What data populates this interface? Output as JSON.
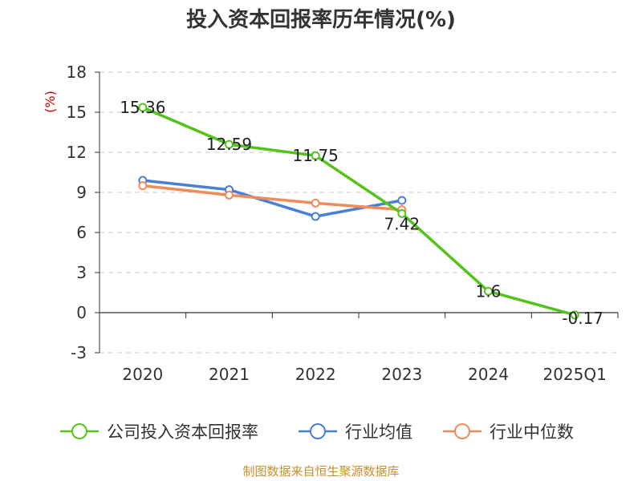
{
  "chart_data": {
    "type": "line",
    "title": "投入资本回报率历年情况(%)",
    "y_unit": "(%)",
    "categories": [
      "2020",
      "2021",
      "2022",
      "2023",
      "2024",
      "2025Q1"
    ],
    "ylim": [
      -3,
      18
    ],
    "yticks": [
      "18",
      "15",
      "12",
      "9",
      "6",
      "3",
      "0",
      "-3"
    ],
    "grid": true,
    "legend_position": "bottom",
    "series": [
      {
        "name": "公司投入资本回报率",
        "color": "#52c41a",
        "values": [
          15.36,
          12.59,
          11.75,
          7.42,
          1.6,
          -0.17
        ],
        "labels": [
          "15.36",
          "12.59",
          "11.75",
          "7.42",
          "1.6",
          "-0.17"
        ]
      },
      {
        "name": "行业均值",
        "color": "#4a7fd6",
        "values": [
          9.9,
          9.2,
          7.2,
          8.4,
          null,
          null
        ]
      },
      {
        "name": "行业中位数",
        "color": "#f08c5a",
        "values": [
          9.5,
          8.8,
          8.2,
          7.7,
          null,
          null
        ]
      }
    ]
  },
  "source": "制图数据来自恒生聚源数据库"
}
